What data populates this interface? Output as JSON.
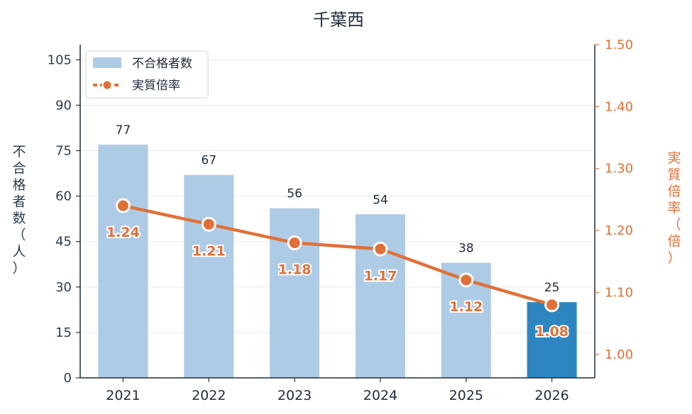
{
  "chart_data": {
    "type": "bar",
    "title": "千葉西",
    "categories": [
      "2021",
      "2022",
      "2023",
      "2024",
      "2025",
      "2026"
    ],
    "series": [
      {
        "name": "不合格者数",
        "type": "bar",
        "axis": "left",
        "values": [
          77,
          67,
          56,
          54,
          38,
          25
        ],
        "color": "#aecbe6",
        "highlight_index": 5,
        "highlight_color": "#2e86c1"
      },
      {
        "name": "実質倍率",
        "type": "line",
        "axis": "right",
        "values": [
          1.24,
          1.21,
          1.18,
          1.17,
          1.12,
          1.08
        ],
        "labels": [
          "1.24",
          "1.21",
          "1.18",
          "1.17",
          "1.12",
          "1.08"
        ],
        "color": "#e07038"
      }
    ],
    "ylabel": "不合格者数（人）",
    "ylabel_chars": [
      "不",
      "合",
      "格",
      "者",
      "数",
      "（",
      "人",
      "）"
    ],
    "ylabel_right": "実質倍率（倍）",
    "ylabel_right_chars": [
      "実",
      "質",
      "倍",
      "率",
      "（",
      "倍",
      "）"
    ],
    "ylim": [
      0,
      110
    ],
    "yticks": [
      "0",
      "15",
      "30",
      "45",
      "60",
      "75",
      "90",
      "105"
    ],
    "ylim_right": [
      0.962,
      1.5
    ],
    "yticks_right": [
      "1.00",
      "1.10",
      "1.20",
      "1.30",
      "1.40",
      "1.50"
    ],
    "grid": true,
    "legend_position": "top-left"
  }
}
